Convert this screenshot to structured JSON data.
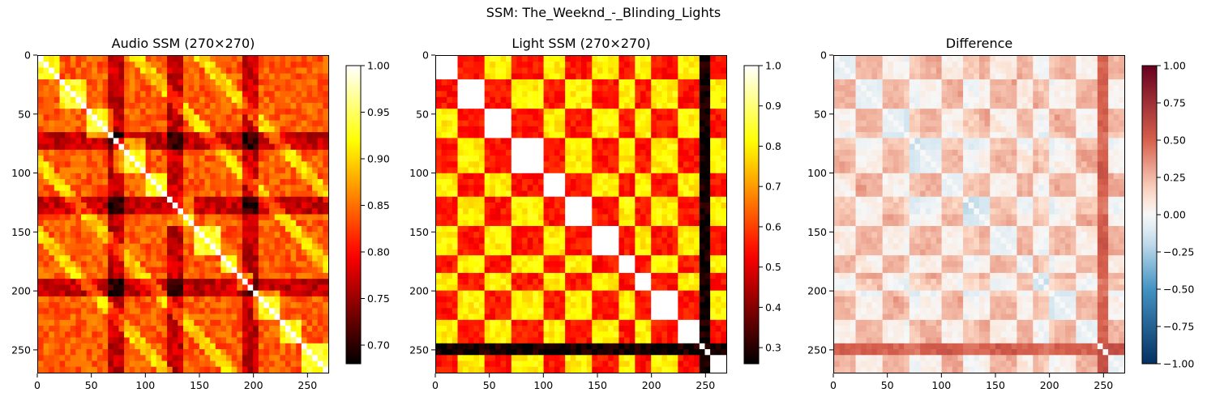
{
  "figure": {
    "suptitle": "SSM: The_Weeknd_-_Blinding_Lights"
  },
  "chart_data": [
    {
      "type": "heatmap",
      "title": "Audio SSM (270×270)",
      "matrix_size": [
        270,
        270
      ],
      "xlim": [
        0,
        270
      ],
      "ylim": [
        270,
        0
      ],
      "xticks": [
        "0",
        "50",
        "100",
        "150",
        "200",
        "250"
      ],
      "yticks": [
        "0",
        "50",
        "100",
        "150",
        "200",
        "250"
      ],
      "colormap": "hot",
      "colorbar": {
        "range": [
          0.68,
          1.0
        ],
        "ticks": [
          "0.70",
          "0.75",
          "0.80",
          "0.85",
          "0.90",
          "0.95",
          "1.00"
        ]
      },
      "diagonal_value": 1.0,
      "segments_boundaries": [
        0,
        20,
        45,
        70,
        100,
        120,
        145,
        170,
        185,
        200,
        225,
        245,
        270
      ]
    },
    {
      "type": "heatmap",
      "title": "Light SSM (270×270)",
      "matrix_size": [
        270,
        270
      ],
      "xlim": [
        0,
        270
      ],
      "ylim": [
        270,
        0
      ],
      "xticks": [
        "0",
        "50",
        "100",
        "150",
        "200",
        "250"
      ],
      "yticks": [
        "0",
        "50",
        "100",
        "150",
        "200",
        "250"
      ],
      "colormap": "hot",
      "colorbar": {
        "range": [
          0.26,
          1.0
        ],
        "ticks": [
          "0.3",
          "0.4",
          "0.5",
          "0.6",
          "0.7",
          "0.8",
          "0.9",
          "1.0"
        ]
      },
      "diagonal_value": 1.0
    },
    {
      "type": "heatmap",
      "title": "Difference",
      "matrix_size": [
        270,
        270
      ],
      "xlim": [
        0,
        270
      ],
      "ylim": [
        270,
        0
      ],
      "xticks": [
        "0",
        "50",
        "100",
        "150",
        "200",
        "250"
      ],
      "yticks": [
        "0",
        "50",
        "100",
        "150",
        "200",
        "250"
      ],
      "colormap": "RdBu_r",
      "colorbar": {
        "range": [
          -1.0,
          1.0
        ],
        "ticks": [
          "−1.00",
          "−0.75",
          "−0.50",
          "−0.25",
          "0.00",
          "0.25",
          "0.50",
          "0.75",
          "1.00"
        ]
      }
    }
  ]
}
